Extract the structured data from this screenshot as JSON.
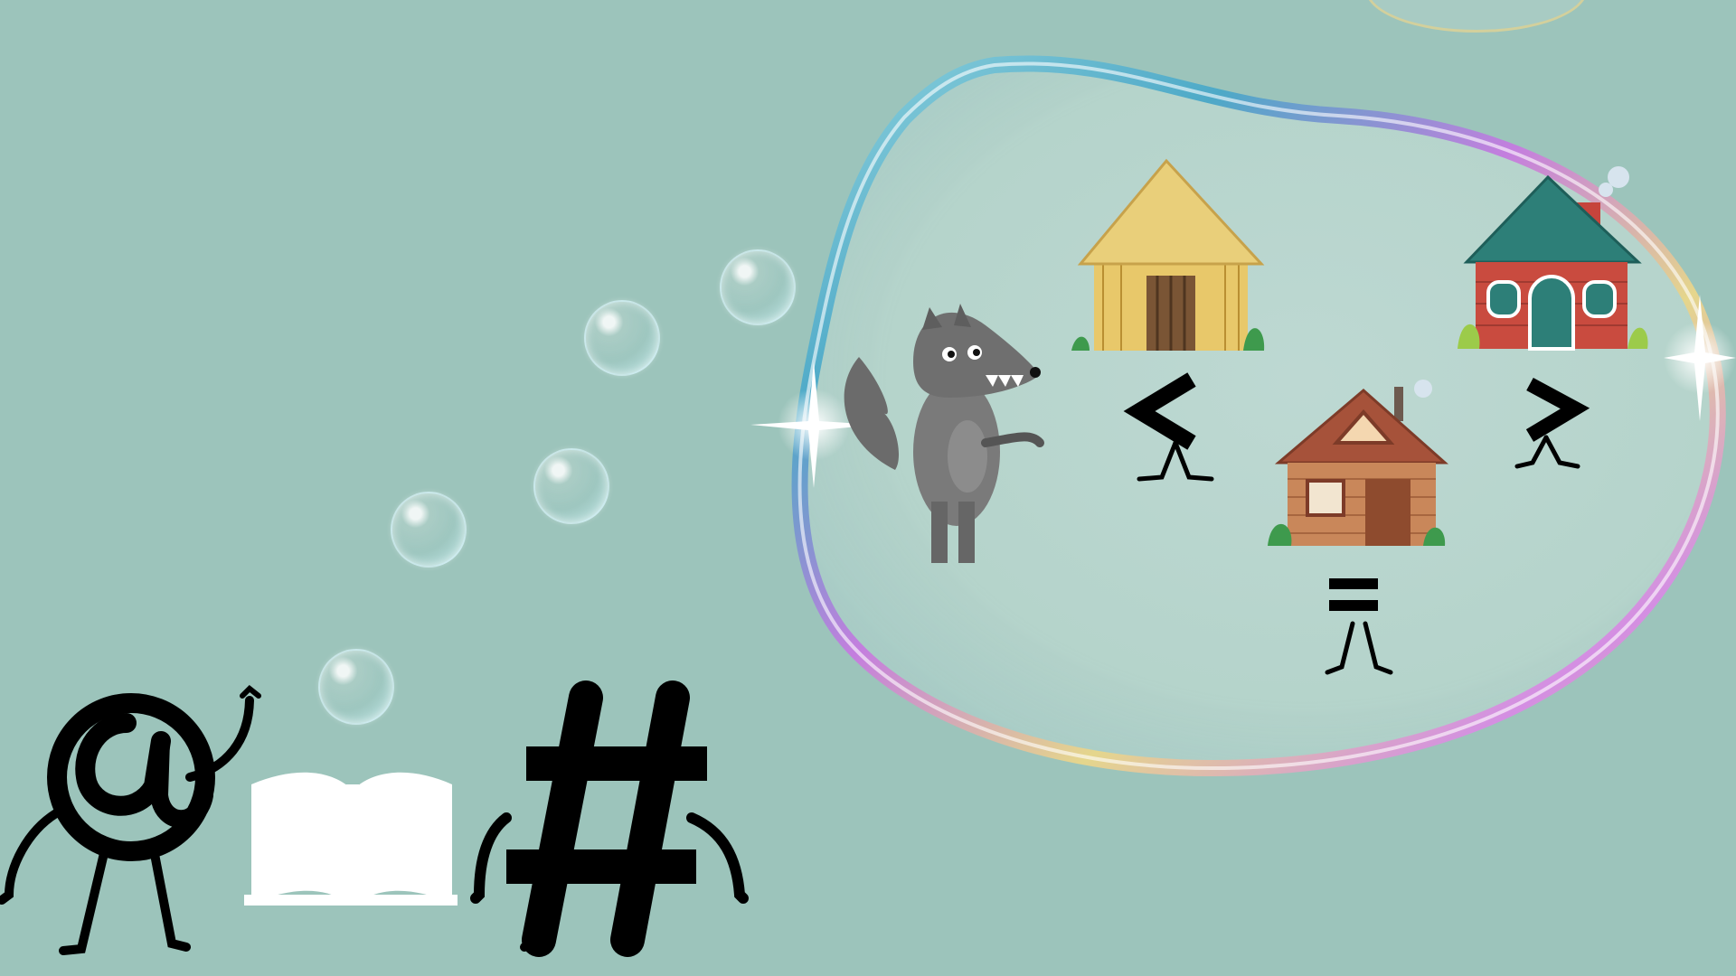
{
  "scene": {
    "background_color": "#9cc4bb",
    "characters": [
      {
        "name": "at-sign-character",
        "glyph": "@"
      },
      {
        "name": "hash-character",
        "glyph": "#"
      }
    ],
    "story_elements": [
      {
        "name": "wolf",
        "icon": "wolf-icon"
      },
      {
        "name": "straw-house",
        "icon": "straw-house-icon"
      },
      {
        "name": "wood-house",
        "icon": "wood-house-icon"
      },
      {
        "name": "brick-house",
        "icon": "brick-house-icon"
      }
    ],
    "symbols": [
      "<",
      ">",
      "="
    ],
    "open-book": "book-icon"
  }
}
